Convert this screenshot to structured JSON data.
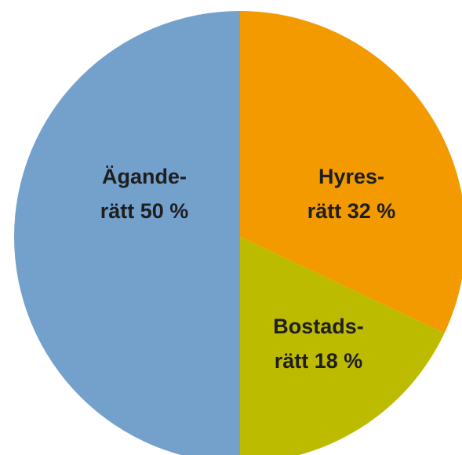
{
  "chart_data": {
    "type": "pie",
    "title": "",
    "start_angle_deg": 0,
    "direction": "clockwise",
    "slices": [
      {
        "label_line1": "Hyres-",
        "label_line2": "rätt 32 %",
        "value": 32,
        "color": "#F29A00"
      },
      {
        "label_line1": "Bostads-",
        "label_line2": "rätt 18 %",
        "value": 18,
        "color": "#BDBB00"
      },
      {
        "label_line1": "Ägande-",
        "label_line2": "rätt 50 %",
        "value": 50,
        "color": "#73A1CC"
      }
    ]
  }
}
